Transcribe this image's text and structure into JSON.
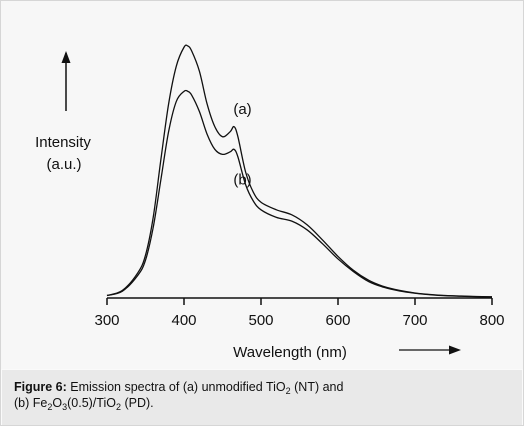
{
  "figure": {
    "caption_label": "Figure 6:",
    "caption_line1_pre": " Emission spectra of (a) unmodified TiO",
    "caption_sub_1": "2",
    "caption_line1_post": " (NT) and",
    "caption_line2_pre": "(b) Fe",
    "caption_sub_2": "2",
    "caption_mid_2": "O",
    "caption_sub_3": "3",
    "caption_mid_3": "(0.5)/TiO",
    "caption_sub_4": "2",
    "caption_line2_post": " (PD)."
  },
  "chart_data": {
    "type": "line",
    "title": "",
    "xlabel": "Wavelength (nm)",
    "ylabel_line1": "Intensity",
    "ylabel_line2": "(a.u.)",
    "xlim": [
      300,
      800
    ],
    "ylim": [
      0,
      100
    ],
    "x_ticks": [
      300,
      400,
      500,
      600,
      700,
      800
    ],
    "x_tick_labels": [
      "300",
      "400",
      "500",
      "600",
      "700",
      "800"
    ],
    "y_ticks_shown": false,
    "grid": false,
    "series": [
      {
        "name": "(a)",
        "x": [
          300,
          320,
          340,
          350,
          360,
          370,
          380,
          390,
          400,
          405,
          410,
          420,
          430,
          440,
          450,
          460,
          465,
          470,
          480,
          490,
          500,
          520,
          540,
          560,
          580,
          600,
          620,
          640,
          660,
          680,
          700,
          720,
          740,
          760,
          780,
          800
        ],
        "y": [
          1.0,
          3.0,
          10.0,
          17.0,
          32.0,
          55.0,
          77.0,
          92.0,
          99.5,
          100.0,
          98.0,
          90.0,
          77.0,
          68.0,
          64.0,
          66.0,
          68.0,
          64.0,
          50.0,
          42.0,
          38.0,
          35.0,
          33.0,
          29.0,
          23.0,
          16.5,
          11.0,
          7.0,
          4.5,
          3.0,
          2.0,
          1.4,
          1.0,
          0.8,
          0.6,
          0.5
        ]
      },
      {
        "name": "(b)",
        "x": [
          300,
          320,
          340,
          350,
          360,
          370,
          380,
          390,
          400,
          405,
          410,
          420,
          430,
          440,
          450,
          460,
          465,
          470,
          480,
          490,
          500,
          520,
          540,
          560,
          580,
          600,
          620,
          640,
          660,
          680,
          700,
          720,
          740,
          760,
          780,
          800
        ],
        "y": [
          1.0,
          2.7,
          9.0,
          15.0,
          28.0,
          47.0,
          66.0,
          78.0,
          82.0,
          82.0,
          80.5,
          74.0,
          65.0,
          59.0,
          57.0,
          58.0,
          59.0,
          56.0,
          45.0,
          38.5,
          35.0,
          32.0,
          30.5,
          27.0,
          21.5,
          15.5,
          10.5,
          6.5,
          4.2,
          2.8,
          1.9,
          1.3,
          0.9,
          0.7,
          0.5,
          0.4
        ]
      }
    ],
    "annotations": [
      {
        "text": "(a)",
        "x": 476,
        "y": 73
      },
      {
        "text": "(b)",
        "x": 476,
        "y": 45
      }
    ]
  }
}
